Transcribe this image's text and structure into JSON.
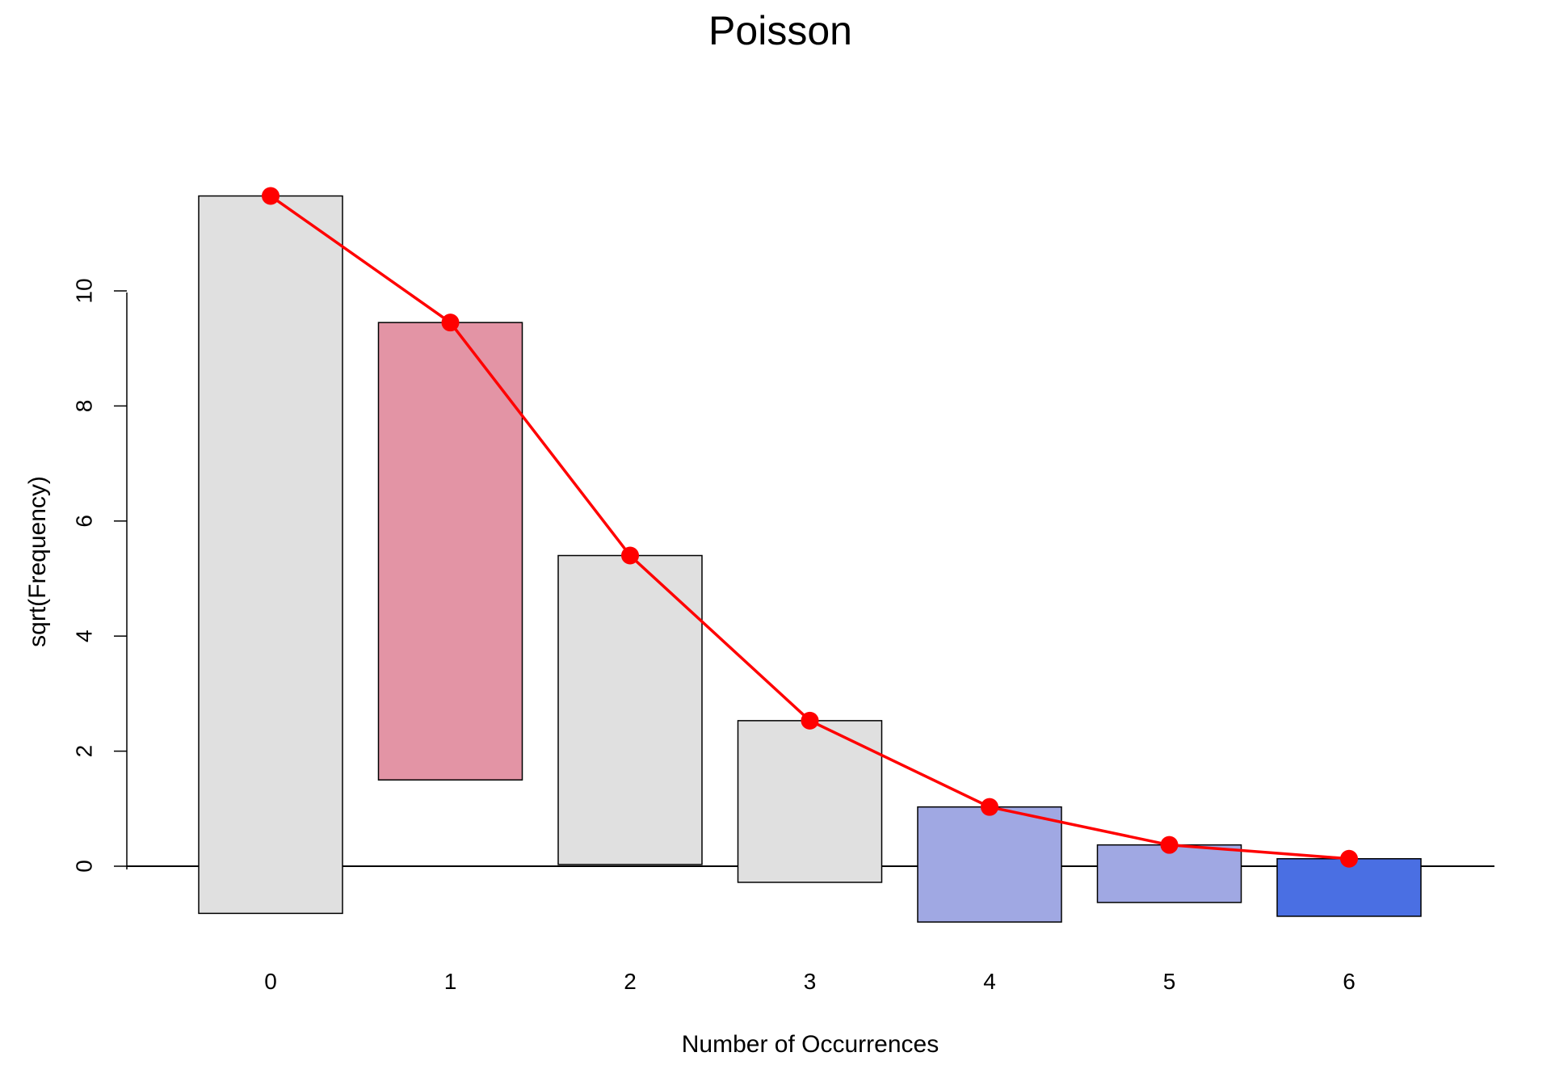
{
  "chart_data": {
    "type": "bar",
    "subtype": "hanging-rootogram",
    "title": "Poisson",
    "xlabel": "Number of Occurrences",
    "ylabel": "sqrt(Frequency)",
    "categories": [
      "0",
      "1",
      "2",
      "3",
      "4",
      "5",
      "6"
    ],
    "bars": [
      {
        "category": "0",
        "bottom": -0.82,
        "top": 11.65,
        "color": "#e0e0e0"
      },
      {
        "category": "1",
        "bottom": 1.5,
        "top": 9.45,
        "color": "#e394a5"
      },
      {
        "category": "2",
        "bottom": 0.03,
        "top": 5.4,
        "color": "#e0e0e0"
      },
      {
        "category": "3",
        "bottom": -0.28,
        "top": 2.53,
        "color": "#e0e0e0"
      },
      {
        "category": "4",
        "bottom": -0.97,
        "top": 1.03,
        "color": "#a0a8e3"
      },
      {
        "category": "5",
        "bottom": -0.63,
        "top": 0.37,
        "color": "#a0a8e3"
      },
      {
        "category": "6",
        "bottom": -0.87,
        "top": 0.13,
        "color": "#4a6fe3"
      }
    ],
    "fitted": {
      "values": [
        11.65,
        9.45,
        5.4,
        2.53,
        1.03,
        0.37,
        0.13
      ],
      "color": "#ff0000"
    },
    "xticks": [
      "0",
      "1",
      "2",
      "3",
      "4",
      "5",
      "6"
    ],
    "yticks": [
      "0",
      "2",
      "4",
      "6",
      "8",
      "10"
    ],
    "ylim": [
      -1.3,
      12.6
    ],
    "grid": false,
    "reference_line": 0
  }
}
